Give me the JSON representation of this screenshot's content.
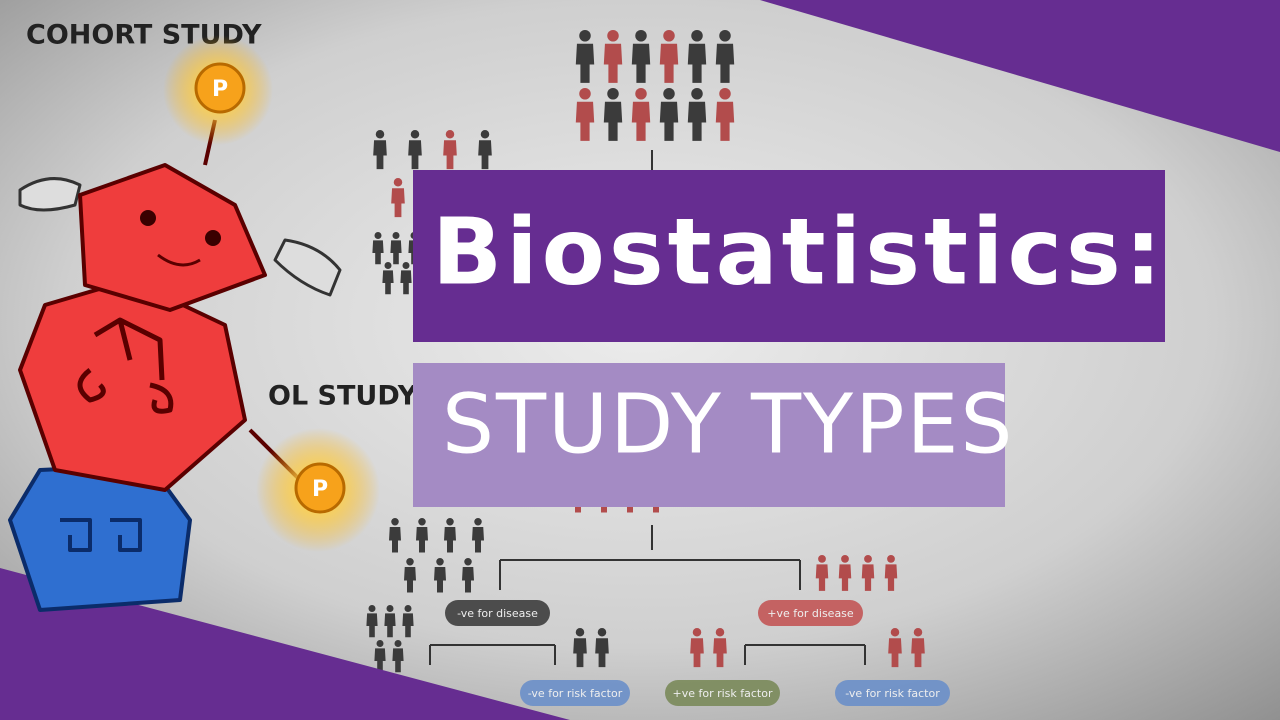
{
  "header": {
    "title": "Biostatistics:",
    "subtitle": "STUDY TYPES"
  },
  "background": {
    "headings": [
      "COHORT STUDY",
      "OL STUDY"
    ],
    "boxes": [
      "-ve for disease",
      "+ve for disease",
      "-ve for risk factor",
      "+ve for risk factor",
      "-ve for risk factor"
    ]
  },
  "mascot": {
    "coins": [
      "P",
      "P"
    ]
  }
}
